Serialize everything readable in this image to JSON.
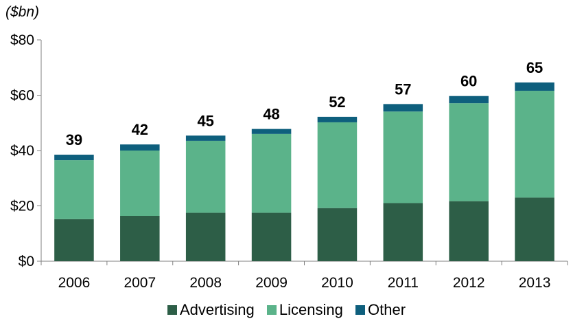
{
  "unit_label": "($bn)",
  "colors": {
    "advertising": "#2d5e47",
    "licensing": "#5bb38a",
    "other": "#0e5f7d",
    "axis": "#808080"
  },
  "chart_data": {
    "type": "bar",
    "stacked": true,
    "categories": [
      "2006",
      "2007",
      "2008",
      "2009",
      "2010",
      "2011",
      "2012",
      "2013"
    ],
    "series": [
      {
        "name": "Advertising",
        "values": [
          15.2,
          16.4,
          17.5,
          17.5,
          19.2,
          21.0,
          21.7,
          23.0
        ]
      },
      {
        "name": "Licensing",
        "values": [
          21.3,
          23.6,
          26.0,
          28.5,
          31.0,
          33.1,
          35.4,
          38.6
        ]
      },
      {
        "name": "Other",
        "values": [
          2.0,
          2.2,
          1.9,
          1.8,
          2.0,
          2.7,
          2.6,
          3.0
        ]
      }
    ],
    "totals": [
      "39",
      "42",
      "45",
      "48",
      "52",
      "57",
      "60",
      "65"
    ],
    "ylim": [
      0,
      80
    ],
    "yticks": [
      0,
      20,
      40,
      60,
      80
    ],
    "ytick_labels": [
      "$0",
      "$20",
      "$40",
      "$60",
      "$80"
    ],
    "xlabel": "",
    "ylabel": "",
    "grid": false,
    "legend_position": "bottom-center"
  }
}
